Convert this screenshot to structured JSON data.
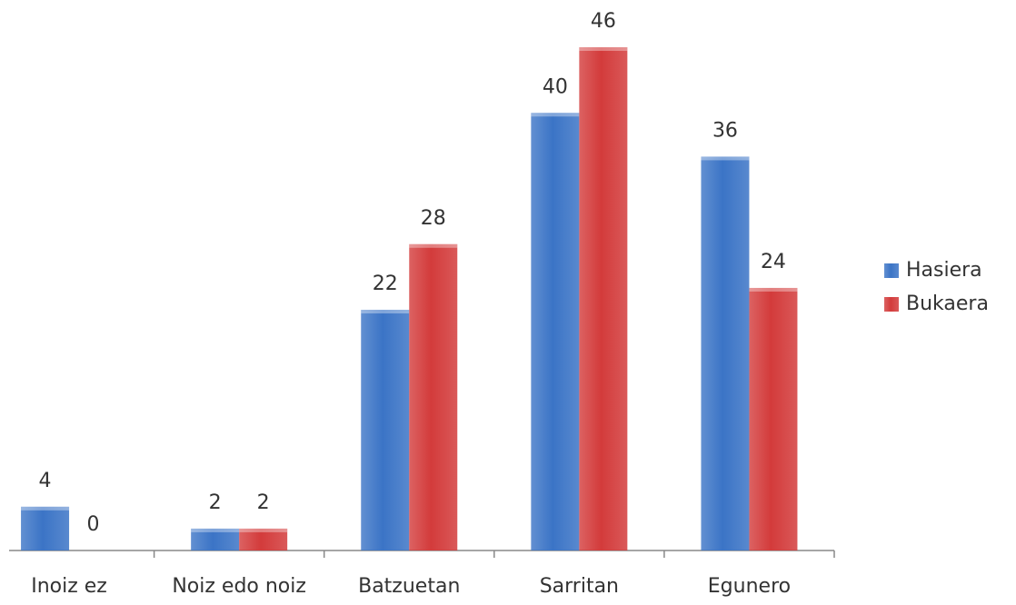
{
  "chart_data": {
    "type": "bar",
    "categories": [
      "Inoiz ez",
      "Noiz edo noiz",
      "Batzuetan",
      "Sarritan",
      "Egunero"
    ],
    "series": [
      {
        "name": "Hasiera",
        "color": "#3b74c6",
        "values": [
          4,
          2,
          22,
          40,
          36
        ]
      },
      {
        "name": "Bukaera",
        "color": "#d33b3b",
        "values": [
          0,
          2,
          28,
          46,
          24
        ]
      }
    ],
    "legend": "right"
  }
}
